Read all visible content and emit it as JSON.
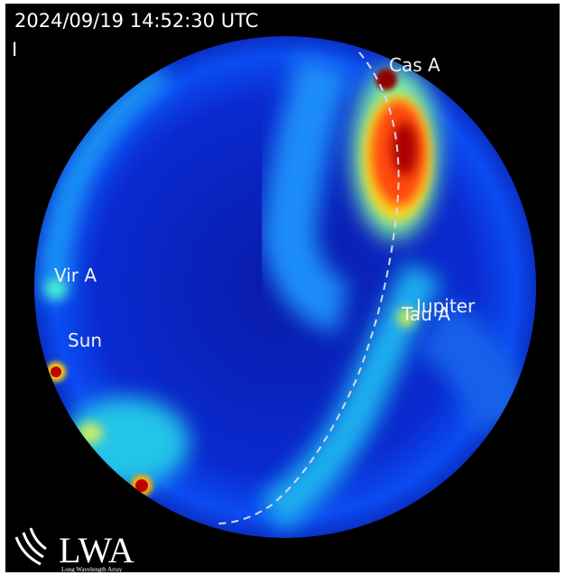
{
  "header": {
    "timestamp": "2024/09/19 14:52:30 UTC",
    "stokes": "I"
  },
  "sources": [
    {
      "label": "Cas A"
    },
    {
      "label": "Vir A"
    },
    {
      "label": "Sun"
    },
    {
      "label": "Jupiter"
    },
    {
      "label": "Tau A"
    }
  ],
  "logo": {
    "text": "LWA",
    "subtitle": "Long Wavelength Array"
  }
}
